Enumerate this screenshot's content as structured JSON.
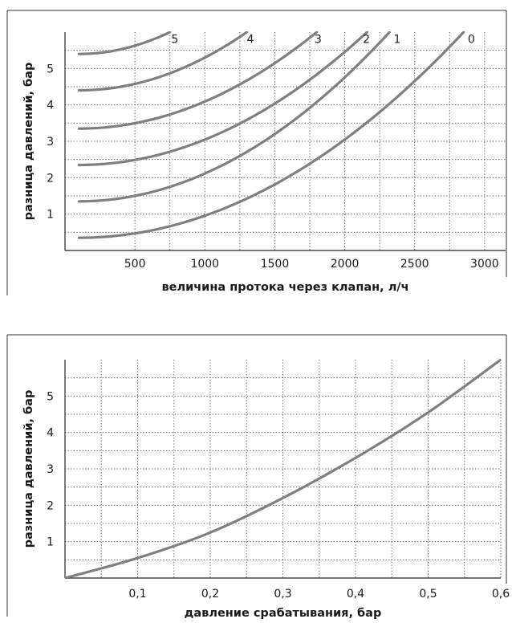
{
  "chart_data": [
    {
      "type": "line",
      "xlabel": "величина протока через клапан, л/ч",
      "ylabel": "разница давлений, бар",
      "xlim": [
        0,
        3150
      ],
      "ylim": [
        0,
        6
      ],
      "x_ticks": [
        500,
        1000,
        1500,
        2000,
        2500,
        3000
      ],
      "x_tick_labels": [
        "500",
        "1000",
        "1500",
        "2000",
        "2500",
        "3000"
      ],
      "y_ticks": [
        1,
        2,
        3,
        4,
        5
      ],
      "y_tick_labels": [
        "1",
        "2",
        "3",
        "4",
        "5"
      ],
      "x_grid": [
        500,
        750,
        1000,
        1250,
        1500,
        1750,
        2000,
        2250,
        2500,
        2750,
        3000
      ],
      "y_grid": [
        0.5,
        1,
        1.5,
        2,
        2.5,
        3,
        3.5,
        4,
        4.5,
        5,
        5.5
      ],
      "grid": true,
      "series": [
        {
          "name": "0",
          "offset": 0.35,
          "x": [
            100,
            500,
            1000,
            1500,
            2000,
            2500,
            2850
          ],
          "y": [
            0.35,
            0.63,
            1.25,
            2.08,
            3.3,
            4.85,
            6.0
          ]
        },
        {
          "name": "1",
          "offset": 1.35,
          "x": [
            100,
            500,
            1000,
            1500,
            2000,
            2320
          ],
          "y": [
            1.35,
            1.66,
            2.38,
            3.48,
            5.05,
            6.0
          ]
        },
        {
          "name": "2",
          "offset": 2.35,
          "x": [
            100,
            500,
            1000,
            1500,
            2000,
            2160
          ],
          "y": [
            2.35,
            2.67,
            3.4,
            4.48,
            6.05,
            6.0
          ]
        },
        {
          "name": "3",
          "offset": 3.35,
          "x": [
            100,
            500,
            1000,
            1500,
            1800
          ],
          "y": [
            3.35,
            3.67,
            4.4,
            5.45,
            6.0
          ]
        },
        {
          "name": "4",
          "offset": 4.4,
          "x": [
            100,
            500,
            1000,
            1300
          ],
          "y": [
            4.4,
            4.7,
            5.45,
            6.0
          ]
        },
        {
          "name": "5",
          "offset": 5.4,
          "x": [
            100,
            500,
            750
          ],
          "y": [
            5.4,
            5.73,
            6.0
          ]
        }
      ],
      "curve_labels": [
        {
          "text": "5",
          "x": 785,
          "y": 5.7
        },
        {
          "text": "4",
          "x": 1325,
          "y": 5.7
        },
        {
          "text": "3",
          "x": 1810,
          "y": 5.7
        },
        {
          "text": "2",
          "x": 2155,
          "y": 5.7
        },
        {
          "text": "1",
          "x": 2375,
          "y": 5.7
        },
        {
          "text": "0",
          "x": 2905,
          "y": 5.7
        }
      ]
    },
    {
      "type": "line",
      "xlabel": "давление срабатывания, бар",
      "ylabel": "разница давлений, бар",
      "xlim": [
        0,
        0.6
      ],
      "ylim": [
        0,
        6
      ],
      "x_ticks": [
        0.1,
        0.2,
        0.3,
        0.4,
        0.5,
        0.6
      ],
      "x_tick_labels": [
        "0,1",
        "0,2",
        "0,3",
        "0,4",
        "0,5",
        "0,6"
      ],
      "y_ticks": [
        1,
        2,
        3,
        4,
        5
      ],
      "y_tick_labels": [
        "1",
        "2",
        "3",
        "4",
        "5"
      ],
      "x_grid": [
        0.05,
        0.1,
        0.15,
        0.2,
        0.25,
        0.3,
        0.35,
        0.4,
        0.45,
        0.5,
        0.55,
        0.6
      ],
      "y_grid": [
        0.5,
        1,
        1.5,
        2,
        2.5,
        3,
        3.5,
        4,
        4.5,
        5,
        5.5
      ],
      "grid": true,
      "series": [
        {
          "name": "",
          "x": [
            0,
            0.1,
            0.2,
            0.3,
            0.4,
            0.5,
            0.6
          ],
          "y": [
            0.0,
            0.55,
            1.25,
            2.2,
            3.3,
            4.55,
            6.0
          ]
        }
      ]
    }
  ]
}
